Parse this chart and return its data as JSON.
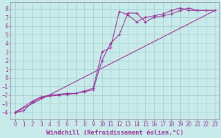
{
  "xlabel": "Windchill (Refroidissement éolien,°C)",
  "bg_color": "#c8eaea",
  "grid_color": "#a0cccc",
  "line_color": "#993399",
  "xlim": [
    -0.5,
    23.5
  ],
  "ylim": [
    -4.8,
    8.8
  ],
  "xticks": [
    0,
    1,
    2,
    3,
    4,
    5,
    6,
    7,
    8,
    9,
    10,
    11,
    12,
    13,
    14,
    15,
    16,
    17,
    18,
    19,
    20,
    21,
    22,
    23
  ],
  "yticks": [
    -4,
    -3,
    -2,
    -1,
    0,
    1,
    2,
    3,
    4,
    5,
    6,
    7,
    8
  ],
  "line1_x": [
    0,
    1,
    2,
    3,
    4,
    5,
    6,
    7,
    8,
    9,
    10,
    11,
    12,
    13,
    14,
    15,
    16,
    17,
    18,
    19,
    20,
    21,
    22,
    23
  ],
  "line1_y": [
    -4,
    -3.8,
    -2.8,
    -2.3,
    -2.1,
    -2.0,
    -1.9,
    -1.8,
    -1.5,
    -1.2,
    3.0,
    3.5,
    7.7,
    7.3,
    6.5,
    7.0,
    7.2,
    7.4,
    7.8,
    8.1,
    7.8,
    7.8,
    7.8,
    7.8
  ],
  "line2_x": [
    0,
    2,
    3,
    4,
    5,
    6,
    7,
    8,
    9,
    10,
    11,
    12,
    13,
    14,
    15,
    16,
    17,
    18,
    19,
    20,
    21,
    22,
    23
  ],
  "line2_y": [
    -4,
    -2.7,
    -2.2,
    -2.0,
    -1.9,
    -1.8,
    -1.8,
    -1.6,
    -1.4,
    2.0,
    4.0,
    5.0,
    7.5,
    7.5,
    6.5,
    7.0,
    7.2,
    7.4,
    7.8,
    8.1,
    7.8,
    7.8,
    7.8
  ],
  "line3_x": [
    0,
    23
  ],
  "line3_y": [
    -4,
    7.8
  ],
  "tick_fontsize": 5.5,
  "label_fontsize": 6.5
}
